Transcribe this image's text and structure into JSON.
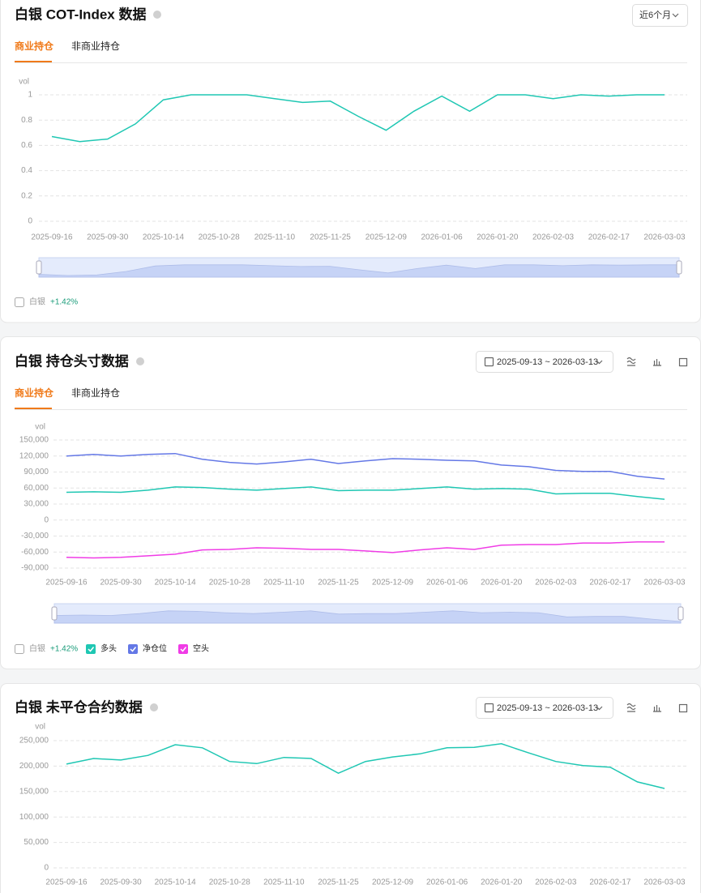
{
  "panels": [
    {
      "range": "近6个月",
      "tabs": [
        "商业持仓",
        "非商业持仓"
      ],
      "compare": {
        "label": "白银",
        "change": "+1.42%"
      }
    },
    {
      "range": "2025-09-13 ~ 2026-03-13",
      "tabs": [
        "商业持仓",
        "非商业持仓"
      ],
      "compare": {
        "label": "白银",
        "change": "+1.42%"
      }
    },
    {
      "range": "2025-09-13 ~ 2026-03-13"
    }
  ],
  "chart_data": [
    {
      "type": "line",
      "title": "白银 COT-Index 数据",
      "y_label": "vol",
      "categories": [
        "2025-09-16",
        null,
        "2025-09-30",
        null,
        "2025-10-14",
        null,
        "2025-10-28",
        null,
        "2025-11-10",
        null,
        "2025-11-25",
        null,
        "2025-12-09",
        null,
        "2026-01-06",
        null,
        "2026-01-20",
        null,
        "2026-02-03",
        null,
        "2026-02-17",
        null,
        "2026-03-03"
      ],
      "series": [
        {
          "color": "#1fc7b3",
          "values": [
            0.67,
            0.63,
            0.65,
            0.77,
            0.96,
            1,
            1,
            1,
            0.97,
            0.94,
            0.95,
            0.83,
            0.72,
            0.87,
            0.99,
            0.87,
            1,
            1,
            0.97,
            1,
            0.99,
            1,
            1
          ]
        }
      ],
      "ylim": [
        0,
        1
      ],
      "yticks": [
        0,
        0.2,
        0.4,
        0.6,
        0.8,
        1
      ],
      "grid": true
    },
    {
      "type": "line",
      "title": "白银 持仓头寸数据",
      "y_label": "vol",
      "categories": [
        "2025-09-16",
        null,
        "2025-09-30",
        null,
        "2025-10-14",
        null,
        "2025-10-28",
        null,
        "2025-11-10",
        null,
        "2025-11-25",
        null,
        "2025-12-09",
        null,
        "2026-01-06",
        null,
        "2026-01-20",
        null,
        "2026-02-03",
        null,
        "2026-02-17",
        null,
        "2026-03-03"
      ],
      "series": [
        {
          "name": "多头",
          "color": "#1fc7b3",
          "values": [
            52000,
            53000,
            52000,
            56000,
            62000,
            61000,
            58000,
            56000,
            59000,
            62000,
            55000,
            56000,
            56000,
            59000,
            62000,
            58000,
            59000,
            58000,
            49000,
            50000,
            50000,
            44000,
            39000
          ]
        },
        {
          "name": "净仓位",
          "color": "#6478e6",
          "values": [
            120000,
            123000,
            120000,
            123000,
            124600,
            114000,
            108000,
            105000,
            109000,
            114000,
            106000,
            111000,
            115000,
            114000,
            112000,
            111000,
            103000,
            100000,
            93000,
            91000,
            91000,
            82000,
            77000
          ]
        },
        {
          "name": "空头",
          "color": "#f03ce6",
          "values": [
            -70000,
            -71000,
            -70000,
            -67000,
            -64000,
            -56000,
            -55000,
            -52000,
            -53000,
            -55000,
            -55000,
            -58000,
            -61000,
            -56000,
            -52000,
            -55000,
            -47000,
            -46000,
            -46000,
            -43000,
            -43000,
            -41000,
            -41000
          ]
        }
      ],
      "ylim": [
        -90000,
        150000
      ],
      "yticks": [
        {
          "value": 150000,
          "label": "150,000"
        },
        {
          "value": 120000,
          "label": "120,000"
        },
        {
          "value": 90000,
          "label": "90,000"
        },
        {
          "value": 60000,
          "label": "60,000"
        },
        {
          "value": 30000,
          "label": "30,000"
        },
        0,
        {
          "value": -30000,
          "label": "-30,000"
        },
        {
          "value": -60000,
          "label": "-60,000"
        },
        {
          "value": -90000,
          "label": "-90,000"
        }
      ],
      "grid": true
    },
    {
      "type": "line",
      "title": "白银 未平仓合约数据",
      "y_label": "vol",
      "categories": [
        "2025-09-16",
        null,
        "2025-09-30",
        null,
        "2025-10-14",
        null,
        "2025-10-28",
        null,
        "2025-11-10",
        null,
        "2025-11-25",
        null,
        "2025-12-09",
        null,
        "2026-01-06",
        null,
        "2026-01-20",
        null,
        "2026-02-03",
        null,
        "2026-02-17",
        null,
        "2026-03-03"
      ],
      "series": [
        {
          "color": "#1fc7b3",
          "values": [
            204000,
            215000,
            212000,
            221000,
            242000,
            236000,
            209000,
            205000,
            217000,
            215000,
            186000,
            209000,
            218000,
            224000,
            236000,
            237000,
            244000,
            226000,
            209000,
            201000,
            198000,
            169000,
            156000
          ]
        }
      ],
      "ylim": [
        0,
        250000
      ],
      "yticks": [
        0,
        {
          "value": 50000,
          "label": "50,000"
        },
        {
          "value": 100000,
          "label": "100,000"
        },
        {
          "value": 150000,
          "label": "150,000"
        },
        {
          "value": 200000,
          "label": "200,000"
        },
        {
          "value": 250000,
          "label": "250,000"
        }
      ],
      "grid": true
    }
  ]
}
